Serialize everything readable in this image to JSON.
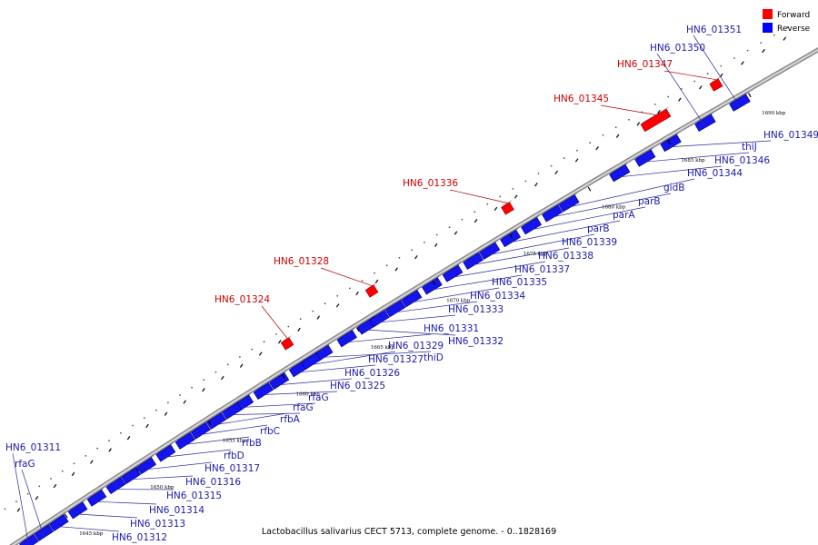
{
  "caption": "Lactobacillus salivarius CECT 5713, complete genome. - 0..1828169",
  "legend": [
    {
      "label": "Forward",
      "color": "#ff0000"
    },
    {
      "label": "Reverse",
      "color": "#0000ff"
    }
  ],
  "colors": {
    "forward": "#ff0000",
    "reverse": "#1414ee",
    "fwd_label": "#cc0000",
    "rev_label": "#1a1aa8"
  },
  "ticks": [
    {
      "label": "1645 kbp",
      "pos": 1645
    },
    {
      "label": "1650 kbp",
      "pos": 1650
    },
    {
      "label": "1655 kbp",
      "pos": 1655
    },
    {
      "label": "1660 kbp",
      "pos": 1660
    },
    {
      "label": "1665 kbp",
      "pos": 1665
    },
    {
      "label": "1670 kbp",
      "pos": 1670
    },
    {
      "label": "1675 kbp",
      "pos": 1675
    },
    {
      "label": "1680 kbp",
      "pos": 1680
    },
    {
      "label": "1685 kbp",
      "pos": 1685
    },
    {
      "label": "1690 kbp",
      "pos": 1690
    }
  ],
  "forward_genes": [
    "HN6_01324",
    "HN6_01328",
    "HN6_01336",
    "HN6_01345",
    "HN6_01347"
  ],
  "reverse_genes": [
    "HN6_01311",
    "rfaG",
    "HN6_01312",
    "HN6_01313",
    "HN6_01314",
    "HN6_01315",
    "HN6_01316",
    "HN6_01317",
    "rfbD",
    "rfbB",
    "rfbC",
    "rfbA",
    "rfaG",
    "rfaG",
    "HN6_01325",
    "HN6_01326",
    "HN6_01327",
    "thiD",
    "HN6_01329",
    "HN6_01331",
    "HN6_01332",
    "HN6_01333",
    "HN6_01334",
    "HN6_01335",
    "HN6_01337",
    "HN6_01338",
    "HN6_01339",
    "parB",
    "parA",
    "parB",
    "gidB",
    "HN6_01344",
    "HN6_01346",
    "thiJ",
    "HN6_01349",
    "HN6_01350",
    "HN6_01351"
  ]
}
